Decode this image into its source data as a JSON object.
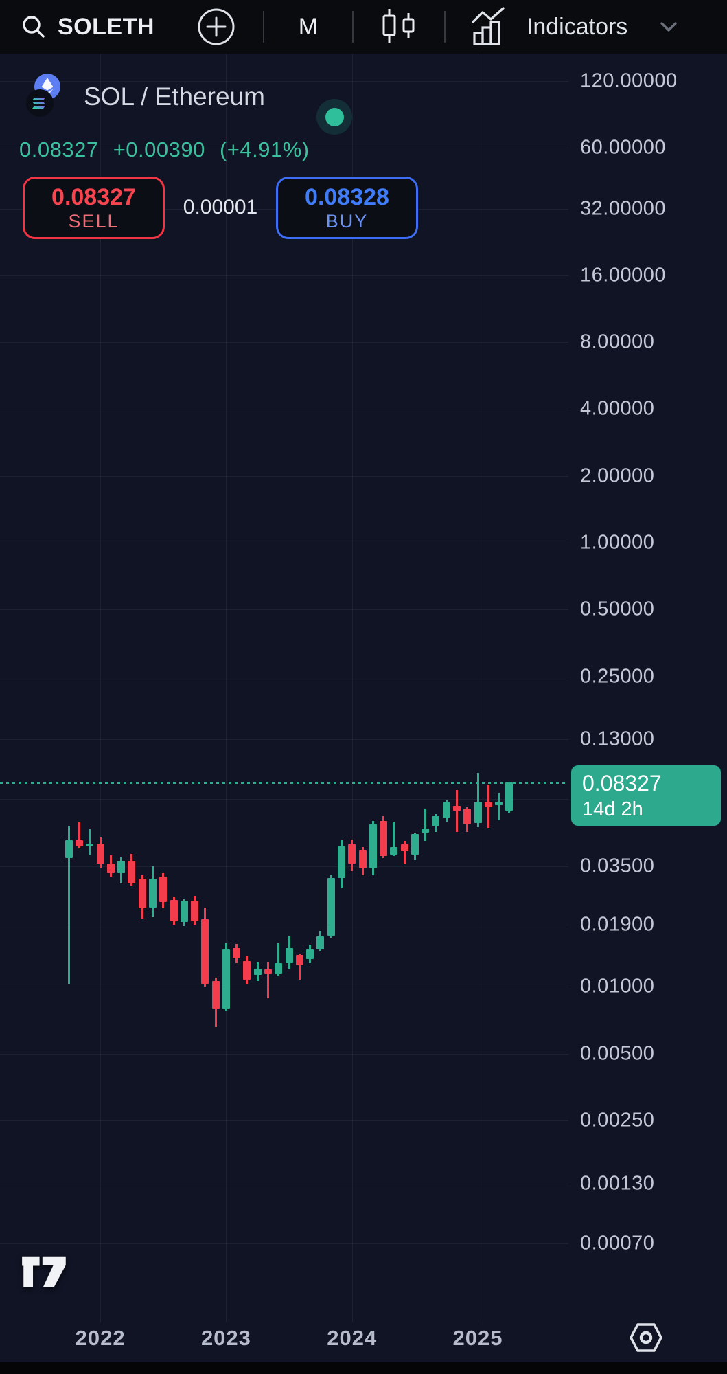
{
  "topbar": {
    "symbol": "SOLETH",
    "timeframe": "M",
    "indicators_label": "Indicators"
  },
  "header": {
    "pair_title": "SOL / Ethereum",
    "base": "SOL",
    "quote": "Ethereum",
    "last_price": "0.08327",
    "change": "+0.00390",
    "change_pct": "(+4.91%)",
    "market_status": "open"
  },
  "order_panel": {
    "sell_price": "0.08327",
    "sell_label": "SELL",
    "spread": "0.00001",
    "buy_price": "0.08328",
    "buy_label": "BUY"
  },
  "price_tag": {
    "price": "0.08327",
    "countdown": "14d 2h"
  },
  "icons": [
    "search-icon",
    "plus-circle-icon",
    "candlestick-chart-icon",
    "indicators-icon",
    "chevron-down-icon",
    "sol-logo",
    "eth-logo",
    "status-dot",
    "tradingview-logo",
    "nut-settings-icon"
  ],
  "colors": {
    "up": "#2fae8f",
    "down": "#f33c4c",
    "buy_blue": "#3d74f6",
    "accent_green_text": "#3bbf9c",
    "tag_bg": "#2da98e",
    "bg_topbar": "#0a0b0e",
    "bg_chart": "#101425",
    "axis_text": "#c4c9d6"
  },
  "chart_data": {
    "type": "candlestick",
    "title": "SOL / Ethereum monthly chart",
    "timeframe": "1M",
    "scale": "log",
    "grid": true,
    "current_price": 0.08327,
    "countdown": "14d 2h",
    "y_axis_labels": [
      120,
      60,
      32,
      16,
      8,
      4,
      2,
      1,
      0.5,
      0.25,
      0.13,
      0.035,
      0.019,
      0.01,
      0.005,
      0.0025,
      0.0013,
      0.0007
    ],
    "extra_grid_levels": [
      0.07
    ],
    "x_axis_labels": [
      "2022",
      "2023",
      "2024",
      "2025"
    ],
    "x": [
      "2021-10",
      "2021-11",
      "2021-12",
      "2022-01",
      "2022-02",
      "2022-03",
      "2022-04",
      "2022-05",
      "2022-06",
      "2022-07",
      "2022-08",
      "2022-09",
      "2022-10",
      "2022-11",
      "2022-12",
      "2023-01",
      "2023-02",
      "2023-03",
      "2023-04",
      "2023-05",
      "2023-06",
      "2023-07",
      "2023-08",
      "2023-09",
      "2023-10",
      "2023-11",
      "2023-12",
      "2024-01",
      "2024-02",
      "2024-03",
      "2024-04",
      "2024-05",
      "2024-06",
      "2024-07",
      "2024-08",
      "2024-09",
      "2024-10",
      "2024-11",
      "2024-12",
      "2025-01",
      "2025-02",
      "2025-03",
      "2025-04"
    ],
    "ohlc": [
      [
        0.038,
        0.053,
        0.0103,
        0.0457
      ],
      [
        0.0457,
        0.0555,
        0.042,
        0.0428
      ],
      [
        0.0428,
        0.0512,
        0.0392,
        0.0443
      ],
      [
        0.0443,
        0.0471,
        0.0345,
        0.036
      ],
      [
        0.036,
        0.0392,
        0.0313,
        0.0324
      ],
      [
        0.0324,
        0.0382,
        0.0292,
        0.0369
      ],
      [
        0.0369,
        0.0397,
        0.0286,
        0.0292
      ],
      [
        0.0307,
        0.0318,
        0.0203,
        0.0226
      ],
      [
        0.0227,
        0.035,
        0.0206,
        0.0307
      ],
      [
        0.0313,
        0.0324,
        0.0226,
        0.0241
      ],
      [
        0.0247,
        0.0255,
        0.019,
        0.0198
      ],
      [
        0.0196,
        0.025,
        0.0188,
        0.0245
      ],
      [
        0.0244,
        0.0256,
        0.0191,
        0.0198
      ],
      [
        0.0201,
        0.0228,
        0.01,
        0.0103
      ],
      [
        0.0106,
        0.011,
        0.0066,
        0.008
      ],
      [
        0.008,
        0.0157,
        0.0078,
        0.0147
      ],
      [
        0.0149,
        0.0156,
        0.0128,
        0.0134
      ],
      [
        0.0131,
        0.0137,
        0.0103,
        0.0108
      ],
      [
        0.0113,
        0.0129,
        0.0106,
        0.0121
      ],
      [
        0.012,
        0.013,
        0.0089,
        0.0114
      ],
      [
        0.0114,
        0.0157,
        0.0112,
        0.0128
      ],
      [
        0.0128,
        0.0169,
        0.0121,
        0.0149
      ],
      [
        0.0139,
        0.0141,
        0.0108,
        0.0125
      ],
      [
        0.0133,
        0.0155,
        0.0128,
        0.0147
      ],
      [
        0.0147,
        0.0179,
        0.0144,
        0.0169
      ],
      [
        0.017,
        0.032,
        0.0165,
        0.031
      ],
      [
        0.031,
        0.0458,
        0.028,
        0.0428
      ],
      [
        0.0437,
        0.046,
        0.0333,
        0.036
      ],
      [
        0.0413,
        0.0427,
        0.0318,
        0.0341
      ],
      [
        0.0341,
        0.056,
        0.0318,
        0.0539
      ],
      [
        0.0558,
        0.0587,
        0.0381,
        0.0388
      ],
      [
        0.0394,
        0.0554,
        0.0388,
        0.0427
      ],
      [
        0.0438,
        0.0455,
        0.0357,
        0.0409
      ],
      [
        0.0394,
        0.0494,
        0.0373,
        0.0487
      ],
      [
        0.0496,
        0.0637,
        0.0455,
        0.0515
      ],
      [
        0.053,
        0.06,
        0.05,
        0.0588
      ],
      [
        0.0577,
        0.069,
        0.0554,
        0.0677
      ],
      [
        0.0652,
        0.077,
        0.05,
        0.0621
      ],
      [
        0.0637,
        0.0645,
        0.05,
        0.0539
      ],
      [
        0.0546,
        0.092,
        0.0525,
        0.0682
      ],
      [
        0.0682,
        0.0814,
        0.052,
        0.0645
      ],
      [
        0.0658,
        0.0744,
        0.0564,
        0.0682
      ],
      [
        0.0621,
        0.0838,
        0.061,
        0.08327
      ]
    ],
    "up_color": "#2fae8f",
    "down_color": "#f33c4c",
    "legend_position": "none"
  }
}
